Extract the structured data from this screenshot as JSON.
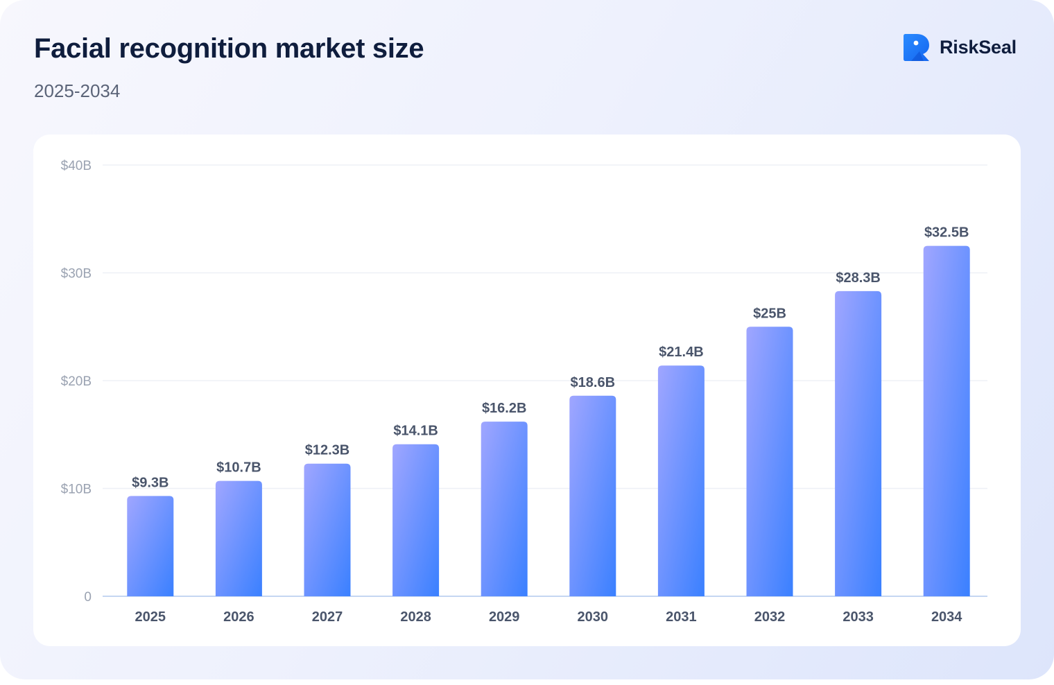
{
  "header": {
    "title": "Facial recognition market size",
    "subtitle": "2025-2034"
  },
  "brand": {
    "name": "RiskSeal",
    "logo_icon": "riskseal-logo-icon",
    "logo_color": "#1a73ff"
  },
  "chart_data": {
    "type": "bar",
    "title": "Facial recognition market size",
    "subtitle": "2025-2034",
    "categories": [
      "2025",
      "2026",
      "2027",
      "2028",
      "2029",
      "2030",
      "2031",
      "2032",
      "2033",
      "2034"
    ],
    "values": [
      9.3,
      10.7,
      12.3,
      14.1,
      16.2,
      18.6,
      21.4,
      25,
      28.3,
      32.5
    ],
    "value_labels": [
      "$9.3B",
      "$10.7B",
      "$12.3B",
      "$14.1B",
      "$16.2B",
      "$18.6B",
      "$21.4B",
      "$25B",
      "$28.3B",
      "$32.5B"
    ],
    "ylim": [
      0,
      40
    ],
    "yticks": [
      0,
      10,
      20,
      30,
      40
    ],
    "ytick_labels": [
      "0",
      "$10B",
      "$20B",
      "$30B",
      "$40B"
    ],
    "xlabel": "",
    "ylabel": "",
    "grid": true,
    "colors": {
      "bar_top": "#a0a6ff",
      "bar_bottom": "#3a80ff",
      "grid": "#eef0f6",
      "axis": "#c5d6f2",
      "tick_text": "#9aa2b1",
      "label_text": "#4a556b"
    }
  }
}
